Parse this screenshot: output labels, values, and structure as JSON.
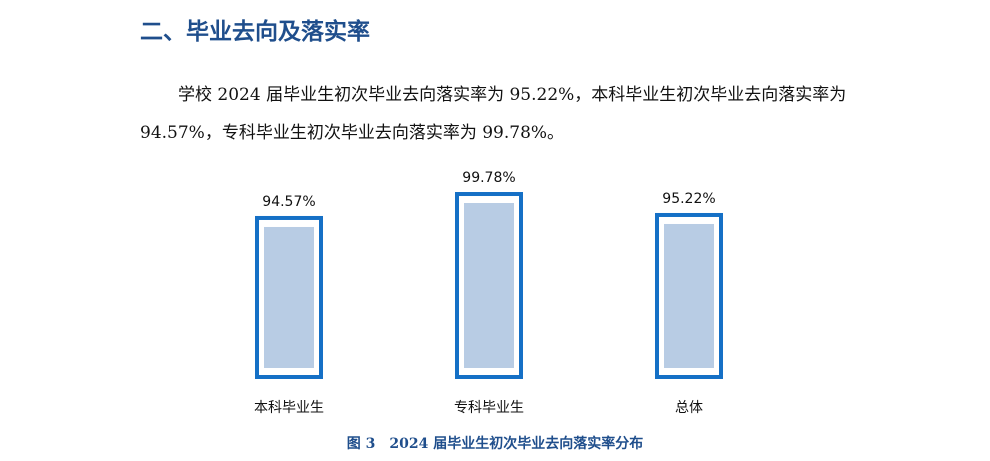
{
  "section_title": "二、毕业去向及落实率",
  "paragraph": "学校 2024 届毕业生初次毕业去向落实率为 95.22%，本科毕业生初次毕业去向落实率为 94.57%，专科毕业生初次毕业去向落实率为 99.78%。",
  "caption": "图 3　2024 届毕业生初次毕业去向落实率分布",
  "chart_data": {
    "type": "bar",
    "categories": [
      "本科毕业生",
      "专科毕业生",
      "总体"
    ],
    "values": [
      94.57,
      99.78,
      95.22
    ],
    "data_labels": [
      "94.57%",
      "99.78%",
      "95.22%"
    ],
    "ylim": [
      60,
      100
    ],
    "grid": false,
    "colors": {
      "fill": "#b8cce4",
      "outline": "#1570c6"
    }
  }
}
